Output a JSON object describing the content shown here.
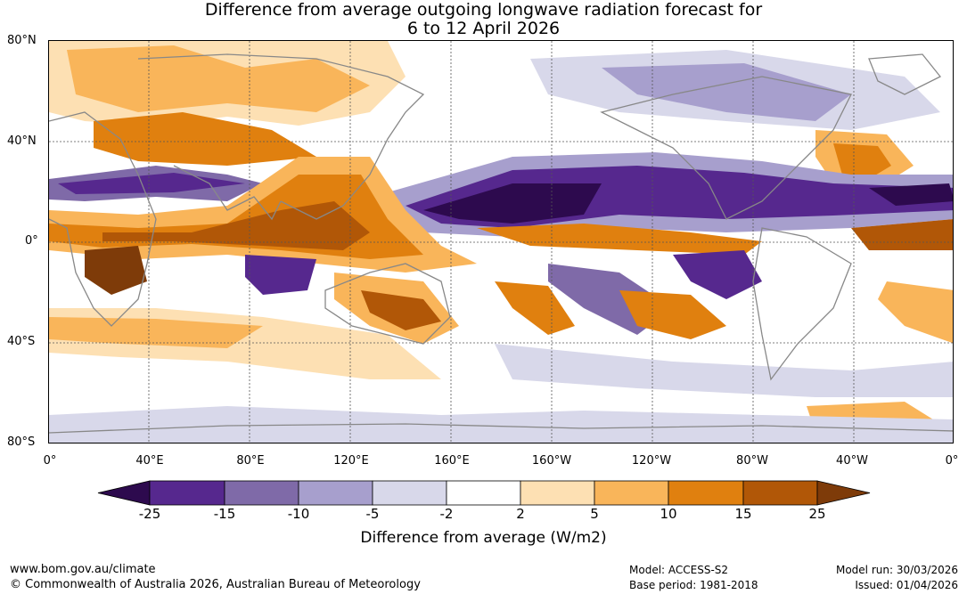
{
  "title_line1": "Difference from average outgoing longwave radiation forecast for",
  "title_line2": "6 to 12 April 2026",
  "lat_labels": [
    "80°N",
    "40°N",
    "0°",
    "40°S",
    "80°S"
  ],
  "lon_labels": [
    "0°",
    "40°E",
    "80°E",
    "120°E",
    "160°E",
    "160°W",
    "120°W",
    "80°W",
    "40°W",
    "0°"
  ],
  "colorbar": {
    "title": "Difference from average (W/m2)",
    "ticks": [
      "-25",
      "-15",
      "-10",
      "-5",
      "-2",
      "2",
      "5",
      "10",
      "15",
      "25"
    ],
    "colors": [
      "#2d0a4e",
      "#56288e",
      "#7f6aa8",
      "#a79fcd",
      "#d8d8ea",
      "#ffffff",
      "#fde0b3",
      "#f9b55a",
      "#e0800f",
      "#b15707",
      "#7e3b09"
    ]
  },
  "footer": {
    "url": "www.bom.gov.au/climate",
    "copyright": "© Commonwealth of Australia 2026, Australian Bureau of Meteorology",
    "model": "Model: ACCESS-S2",
    "base_period": "Base period: 1981-2018",
    "model_run": "Model run: 30/03/2026",
    "issued": "Issued: 01/04/2026"
  }
}
